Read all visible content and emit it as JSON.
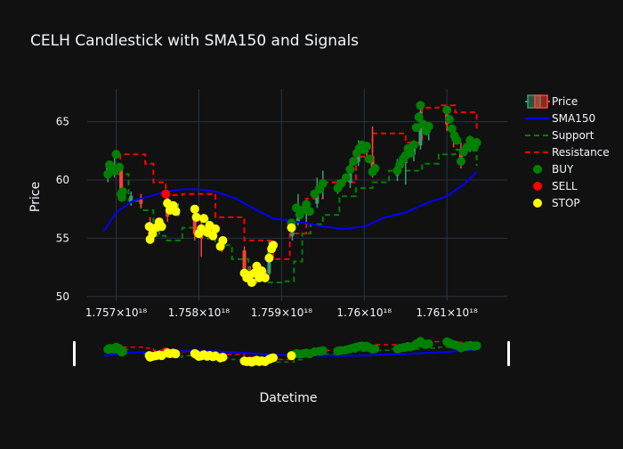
{
  "chart_data": {
    "type": "candlestick",
    "title": "CELH Candlestick with SMA150 and Signals",
    "xlabel": "Datetime",
    "ylabel": "Price",
    "x_ticks": [
      "1.757×10¹⁸",
      "1.758×10¹⁸",
      "1.759×10¹⁸",
      "1.76×10¹⁸",
      "1.761×10¹⁸"
    ],
    "x_tick_values": [
      1.757e+18,
      1.758e+18,
      1.759e+18,
      1.76e+18,
      1.761e+18
    ],
    "y_ticks": [
      "50",
      "55",
      "60",
      "65"
    ],
    "y_tick_values": [
      50,
      55,
      60,
      65
    ],
    "xlim": [
      1.75665e+18,
      1.76173e+18
    ],
    "ylim": [
      49.6,
      67.8
    ],
    "grid": true,
    "legend_position": "top-right",
    "legend": [
      "Price",
      "SMA150",
      "Support",
      "Resistance",
      "BUY",
      "SELL",
      "STOP"
    ],
    "colors": {
      "background": "#111111",
      "grid": "#283442",
      "increasing": "#3d9970",
      "decreasing": "#ff4136",
      "sma": "#0000ff",
      "support": "#008000",
      "resistance": "#ff0000",
      "buy": "#008000",
      "sell": "#ff0000",
      "stop": "#ffff00",
      "rangeslider_bg": "#111111"
    },
    "series": [
      {
        "name": "Price",
        "kind": "candlestick",
        "candles": [
          {
            "x": 1.7569e+18,
            "o": 60.6,
            "h": 61.6,
            "l": 59.8,
            "c": 61.0
          },
          {
            "x": 1.75698e+18,
            "o": 60.8,
            "h": 62.2,
            "l": 60.2,
            "c": 61.2
          },
          {
            "x": 1.75706e+18,
            "o": 61.0,
            "h": 61.3,
            "l": 58.6,
            "c": 59.0
          },
          {
            "x": 1.75718e+18,
            "o": 58.2,
            "h": 59.0,
            "l": 57.8,
            "c": 58.6
          },
          {
            "x": 1.7573e+18,
            "o": 58.3,
            "h": 58.8,
            "l": 57.6,
            "c": 58.0
          },
          {
            "x": 1.75741e+18,
            "o": 56.2,
            "h": 56.8,
            "l": 55.2,
            "c": 55.6
          },
          {
            "x": 1.75752e+18,
            "o": 55.8,
            "h": 56.6,
            "l": 55.3,
            "c": 56.2
          },
          {
            "x": 1.75762e+18,
            "o": 58.4,
            "h": 58.9,
            "l": 56.4,
            "c": 56.9
          },
          {
            "x": 1.75775e+18,
            "o": 57.0,
            "h": 58.0,
            "l": 56.9,
            "c": 57.5
          },
          {
            "x": 1.75795e+18,
            "o": 57.0,
            "h": 57.5,
            "l": 54.8,
            "c": 55.4
          },
          {
            "x": 1.75803e+18,
            "o": 55.2,
            "h": 56.4,
            "l": 53.4,
            "c": 55.0
          },
          {
            "x": 1.75811e+18,
            "o": 55.6,
            "h": 56.8,
            "l": 54.9,
            "c": 56.4
          },
          {
            "x": 1.75819e+18,
            "o": 55.8,
            "h": 56.2,
            "l": 54.8,
            "c": 55.2
          },
          {
            "x": 1.75828e+18,
            "o": 54.8,
            "h": 55.0,
            "l": 53.8,
            "c": 54.2
          },
          {
            "x": 1.75855e+18,
            "o": 53.9,
            "h": 54.3,
            "l": 51.4,
            "c": 51.8
          },
          {
            "x": 1.75862e+18,
            "o": 51.9,
            "h": 52.6,
            "l": 51.0,
            "c": 51.3
          },
          {
            "x": 1.7587e+18,
            "o": 51.5,
            "h": 52.8,
            "l": 51.1,
            "c": 52.2
          },
          {
            "x": 1.7588e+18,
            "o": 52.2,
            "h": 52.4,
            "l": 51.2,
            "c": 51.6
          },
          {
            "x": 1.75885e+18,
            "o": 52.0,
            "h": 54.8,
            "l": 51.8,
            "c": 54.2
          },
          {
            "x": 1.75913e+18,
            "o": 55.2,
            "h": 56.6,
            "l": 54.8,
            "c": 56.2
          },
          {
            "x": 1.7592e+18,
            "o": 56.4,
            "h": 58.8,
            "l": 56.1,
            "c": 57.6
          },
          {
            "x": 1.7593e+18,
            "o": 57.2,
            "h": 58.0,
            "l": 56.4,
            "c": 57.8
          },
          {
            "x": 1.75943e+18,
            "o": 58.0,
            "h": 60.2,
            "l": 57.6,
            "c": 59.4
          },
          {
            "x": 1.7595e+18,
            "o": 59.6,
            "h": 60.8,
            "l": 58.4,
            "c": 59.8
          },
          {
            "x": 1.75968e+18,
            "o": 59.2,
            "h": 60.0,
            "l": 58.8,
            "c": 59.6
          },
          {
            "x": 1.75983e+18,
            "o": 59.8,
            "h": 61.6,
            "l": 59.3,
            "c": 61.0
          },
          {
            "x": 1.75993e+18,
            "o": 61.6,
            "h": 63.4,
            "l": 61.2,
            "c": 62.9
          },
          {
            "x": 1.76003e+18,
            "o": 62.8,
            "h": 63.2,
            "l": 62.0,
            "c": 62.4
          },
          {
            "x": 1.7601e+18,
            "o": 62.0,
            "h": 64.6,
            "l": 60.2,
            "c": 60.8
          },
          {
            "x": 1.7604e+18,
            "o": 60.4,
            "h": 61.8,
            "l": 59.9,
            "c": 61.3
          },
          {
            "x": 1.7605e+18,
            "o": 61.5,
            "h": 62.2,
            "l": 59.6,
            "c": 62.0
          },
          {
            "x": 1.7606e+18,
            "o": 62.2,
            "h": 63.4,
            "l": 61.6,
            "c": 62.7
          },
          {
            "x": 1.76068e+18,
            "o": 63.0,
            "h": 66.4,
            "l": 62.6,
            "c": 65.8
          },
          {
            "x": 1.76078e+18,
            "o": 64.2,
            "h": 64.9,
            "l": 63.4,
            "c": 64.5
          },
          {
            "x": 1.761e+18,
            "o": 65.6,
            "h": 66.2,
            "l": 64.2,
            "c": 64.8
          },
          {
            "x": 1.76108e+18,
            "o": 63.8,
            "h": 64.4,
            "l": 62.8,
            "c": 63.4
          },
          {
            "x": 1.76117e+18,
            "o": 62.6,
            "h": 63.2,
            "l": 61.0,
            "c": 61.6
          },
          {
            "x": 1.76128e+18,
            "o": 62.8,
            "h": 63.8,
            "l": 62.4,
            "c": 63.4
          },
          {
            "x": 1.76136e+18,
            "o": 63.0,
            "h": 63.6,
            "l": 62.6,
            "c": 63.2
          }
        ]
      },
      {
        "name": "SMA150",
        "kind": "line",
        "x": [
          1.75685e+18,
          1.757e+18,
          1.7572e+18,
          1.7574e+18,
          1.7576e+18,
          1.7578e+18,
          1.758e+18,
          1.7582e+18,
          1.75845e+18,
          1.7587e+18,
          1.7589e+18,
          1.7591e+18,
          1.7593e+18,
          1.7595e+18,
          1.75975e+18,
          1.76e+18,
          1.76025e+18,
          1.7605e+18,
          1.76075e+18,
          1.761e+18,
          1.7612e+18,
          1.76136e+18
        ],
        "y": [
          55.6,
          57.2,
          58.2,
          58.6,
          59.0,
          59.2,
          59.2,
          59.0,
          58.4,
          57.4,
          56.7,
          56.5,
          56.3,
          56.0,
          55.8,
          56.0,
          56.8,
          57.2,
          58.0,
          58.6,
          59.6,
          60.7
        ]
      },
      {
        "name": "Support",
        "kind": "step",
        "x": [
          1.7569e+18,
          1.75715e+18,
          1.7573e+18,
          1.75745e+18,
          1.7576e+18,
          1.7578e+18,
          1.758e+18,
          1.7582e+18,
          1.7584e+18,
          1.7586e+18,
          1.7588e+18,
          1.759e+18,
          1.75915e+18,
          1.75925e+18,
          1.75935e+18,
          1.7595e+18,
          1.7597e+18,
          1.7599e+18,
          1.7601e+18,
          1.7603e+18,
          1.7605e+18,
          1.7607e+18,
          1.7609e+18,
          1.7611e+18,
          1.76136e+18
        ],
        "y": [
          60.5,
          58.2,
          57.4,
          55.2,
          54.8,
          55.9,
          55.9,
          54.4,
          53.2,
          51.6,
          51.2,
          51.3,
          53.0,
          55.4,
          56.2,
          57.0,
          58.6,
          59.3,
          59.8,
          60.8,
          60.8,
          61.4,
          62.2,
          62.6,
          61.2
        ]
      },
      {
        "name": "Resistance",
        "kind": "step",
        "x": [
          1.7569e+18,
          1.75705e+18,
          1.75735e+18,
          1.75745e+18,
          1.7576e+18,
          1.7578e+18,
          1.758e+18,
          1.7582e+18,
          1.7584e+18,
          1.75855e+18,
          1.7587e+18,
          1.7589e+18,
          1.7591e+18,
          1.7593e+18,
          1.7595e+18,
          1.7597e+18,
          1.7599e+18,
          1.7601e+18,
          1.7603e+18,
          1.7605e+18,
          1.7607e+18,
          1.7609e+18,
          1.7611e+18,
          1.76136e+18
        ],
        "y": [
          61.3,
          62.2,
          61.4,
          59.8,
          58.7,
          58.8,
          58.8,
          56.8,
          56.8,
          54.8,
          54.8,
          53.2,
          55.4,
          58.4,
          59.8,
          59.8,
          62.0,
          64.0,
          64.0,
          63.2,
          66.2,
          66.4,
          65.8,
          64.4
        ]
      },
      {
        "name": "BUY",
        "kind": "marker",
        "x": [
          1.7569e+18,
          1.75692e+18,
          1.75695e+18,
          1.75698e+18,
          1.757e+18,
          1.75704e+18,
          1.75706e+18,
          1.75707e+18,
          1.75708e+18,
          1.75912e+18,
          1.75918e+18,
          1.75922e+18,
          1.75926e+18,
          1.7593e+18,
          1.75934e+18,
          1.7594e+18,
          1.75946e+18,
          1.7595e+18,
          1.75968e+18,
          1.75972e+18,
          1.75978e+18,
          1.75983e+18,
          1.75987e+18,
          1.75991e+18,
          1.75994e+18,
          1.75997e+18,
          1.76e+18,
          1.76003e+18,
          1.76006e+18,
          1.7601e+18,
          1.76013e+18,
          1.7604e+18,
          1.76043e+18,
          1.76047e+18,
          1.7605e+18,
          1.76053e+18,
          1.76056e+18,
          1.7606e+18,
          1.76063e+18,
          1.76066e+18,
          1.76068e+18,
          1.76071e+18,
          1.76075e+18,
          1.76078e+18,
          1.761e+18,
          1.76103e+18,
          1.76106e+18,
          1.76109e+18,
          1.76112e+18,
          1.76117e+18,
          1.7612e+18,
          1.76124e+18,
          1.76128e+18,
          1.76133e+18,
          1.76136e+18
        ],
        "y": [
          60.5,
          61.3,
          61.0,
          60.8,
          62.2,
          61.1,
          58.8,
          58.5,
          59.0,
          56.3,
          57.6,
          57.0,
          57.4,
          57.9,
          57.3,
          58.8,
          59.2,
          59.7,
          59.3,
          59.7,
          60.2,
          60.9,
          61.6,
          62.3,
          62.7,
          63.0,
          62.6,
          62.9,
          61.8,
          60.7,
          61.0,
          60.8,
          61.3,
          61.8,
          62.1,
          62.7,
          62.3,
          63.0,
          64.5,
          65.4,
          66.4,
          64.8,
          64.2,
          64.6,
          66.0,
          65.2,
          64.4,
          63.8,
          63.4,
          61.6,
          62.4,
          62.8,
          63.4,
          62.8,
          63.2
        ]
      },
      {
        "name": "SELL",
        "kind": "marker",
        "x": [
          1.7576e+18
        ],
        "y": [
          58.8
        ]
      },
      {
        "name": "STOP",
        "kind": "marker",
        "x": [
          1.7574e+18,
          1.75741e+18,
          1.75744e+18,
          1.75748e+18,
          1.75752e+18,
          1.75755e+18,
          1.75762e+18,
          1.75765e+18,
          1.75769e+18,
          1.75772e+18,
          1.75795e+18,
          1.75797e+18,
          1.758e+18,
          1.75803e+18,
          1.75806e+18,
          1.7581e+18,
          1.75813e+18,
          1.75817e+18,
          1.7582e+18,
          1.75826e+18,
          1.75829e+18,
          1.75855e+18,
          1.75858e+18,
          1.75861e+18,
          1.75864e+18,
          1.75867e+18,
          1.7587e+18,
          1.75873e+18,
          1.75876e+18,
          1.7588e+18,
          1.75885e+18,
          1.75888e+18,
          1.7589e+18,
          1.75912e+18
        ],
        "y": [
          56.0,
          54.9,
          55.4,
          55.9,
          56.4,
          56.0,
          58.0,
          57.4,
          57.8,
          57.3,
          57.5,
          56.8,
          55.4,
          55.8,
          56.7,
          55.5,
          56.1,
          55.2,
          55.8,
          54.3,
          54.8,
          52.0,
          51.6,
          51.8,
          51.2,
          52.0,
          52.6,
          51.6,
          52.2,
          51.6,
          53.3,
          54.1,
          54.4,
          55.9
        ]
      }
    ]
  }
}
